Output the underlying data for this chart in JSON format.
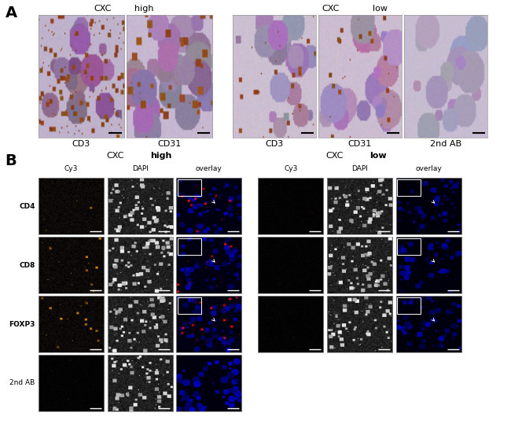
{
  "fig_width": 6.5,
  "fig_height": 5.39,
  "dpi": 100,
  "background": "#ffffff",
  "panel_A": {
    "label": "A",
    "images_high_labels": [
      "CD3",
      "CD31"
    ],
    "images_low_labels": [
      "CD3",
      "CD31",
      "2nd AB"
    ],
    "header_high": "CXC    high",
    "header_low": "CXC    low"
  },
  "panel_B": {
    "label": "B",
    "header_high_plain": "CXC",
    "header_high_bold": "high",
    "header_low_plain": "CXC",
    "header_low_bold": "low",
    "col_headers": [
      "Cy3",
      "DAPI",
      "overlay"
    ],
    "row_labels": [
      "CD4",
      "CD8",
      "FOXP3",
      "2nd AB"
    ]
  }
}
